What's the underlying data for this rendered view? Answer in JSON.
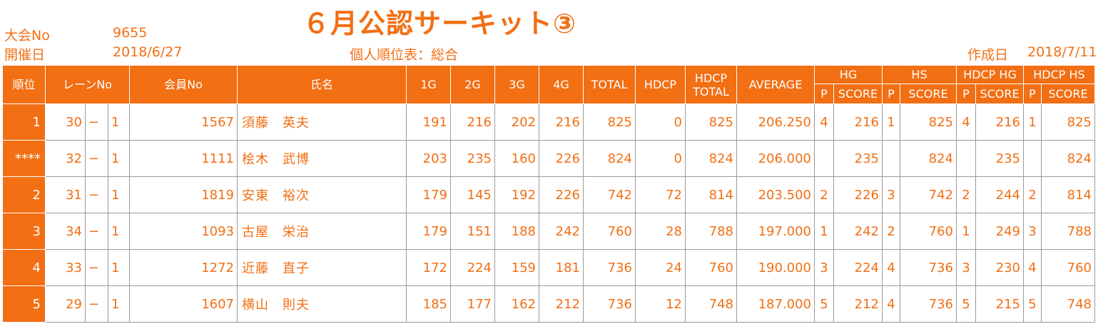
{
  "header": {
    "tournament_label": "大会No",
    "tournament_no": "9655",
    "date_label": "開催日",
    "date": "2018/6/27",
    "title": "６月公認サーキット③",
    "subtitle": "個人順位表：総合",
    "created_label": "作成日",
    "created_date": "2018/7/11"
  },
  "columns": {
    "rank": "順位",
    "lane": "レーンNo",
    "member": "会員No",
    "name": "氏名",
    "g1": "1G",
    "g2": "2G",
    "g3": "3G",
    "g4": "4G",
    "total": "TOTAL",
    "hdcp": "HDCP",
    "hdcp_total_1": "HDCP",
    "hdcp_total_2": "TOTAL",
    "average": "AVERAGE",
    "hg": "HG",
    "hs": "HS",
    "hdcp_hg": "HDCP HG",
    "hdcp_hs": "HDCP HS",
    "p": "P",
    "score": "SCORE"
  },
  "rows": [
    {
      "rank": "1",
      "lane": "30",
      "dash": "−",
      "lane_sub": "1",
      "member": "1567",
      "name": "須藤　英夫",
      "g1": "191",
      "g2": "216",
      "g3": "202",
      "g4": "216",
      "total": "825",
      "hdcp": "0",
      "hdcp_total": "825",
      "average": "206.250",
      "hg_p": "4",
      "hg_score": "216",
      "hs_p": "1",
      "hs_score": "825",
      "hhg_p": "4",
      "hhg_score": "216",
      "hhs_p": "1",
      "hhs_score": "825"
    },
    {
      "rank": "****",
      "lane": "32",
      "dash": "−",
      "lane_sub": "1",
      "member": "1111",
      "name": "桧木　武博",
      "g1": "203",
      "g2": "235",
      "g3": "160",
      "g4": "226",
      "total": "824",
      "hdcp": "0",
      "hdcp_total": "824",
      "average": "206.000",
      "hg_p": "",
      "hg_score": "235",
      "hs_p": "",
      "hs_score": "824",
      "hhg_p": "",
      "hhg_score": "235",
      "hhs_p": "",
      "hhs_score": "824"
    },
    {
      "rank": "2",
      "lane": "31",
      "dash": "−",
      "lane_sub": "1",
      "member": "1819",
      "name": "安東　裕次",
      "g1": "179",
      "g2": "145",
      "g3": "192",
      "g4": "226",
      "total": "742",
      "hdcp": "72",
      "hdcp_total": "814",
      "average": "203.500",
      "hg_p": "2",
      "hg_score": "226",
      "hs_p": "3",
      "hs_score": "742",
      "hhg_p": "2",
      "hhg_score": "244",
      "hhs_p": "2",
      "hhs_score": "814"
    },
    {
      "rank": "3",
      "lane": "34",
      "dash": "−",
      "lane_sub": "1",
      "member": "1093",
      "name": "古屋　栄治",
      "g1": "179",
      "g2": "151",
      "g3": "188",
      "g4": "242",
      "total": "760",
      "hdcp": "28",
      "hdcp_total": "788",
      "average": "197.000",
      "hg_p": "1",
      "hg_score": "242",
      "hs_p": "2",
      "hs_score": "760",
      "hhg_p": "1",
      "hhg_score": "249",
      "hhs_p": "3",
      "hhs_score": "788"
    },
    {
      "rank": "4",
      "lane": "33",
      "dash": "−",
      "lane_sub": "1",
      "member": "1272",
      "name": "近藤　直子",
      "g1": "172",
      "g2": "224",
      "g3": "159",
      "g4": "181",
      "total": "736",
      "hdcp": "24",
      "hdcp_total": "760",
      "average": "190.000",
      "hg_p": "3",
      "hg_score": "224",
      "hs_p": "4",
      "hs_score": "736",
      "hhg_p": "3",
      "hhg_score": "230",
      "hhs_p": "4",
      "hhs_score": "760"
    },
    {
      "rank": "5",
      "lane": "29",
      "dash": "−",
      "lane_sub": "1",
      "member": "1607",
      "name": "横山　則夫",
      "g1": "185",
      "g2": "177",
      "g3": "162",
      "g4": "212",
      "total": "736",
      "hdcp": "12",
      "hdcp_total": "748",
      "average": "187.000",
      "hg_p": "5",
      "hg_score": "212",
      "hs_p": "4",
      "hs_score": "736",
      "hhg_p": "5",
      "hhg_score": "215",
      "hhs_p": "5",
      "hhs_score": "748"
    }
  ]
}
